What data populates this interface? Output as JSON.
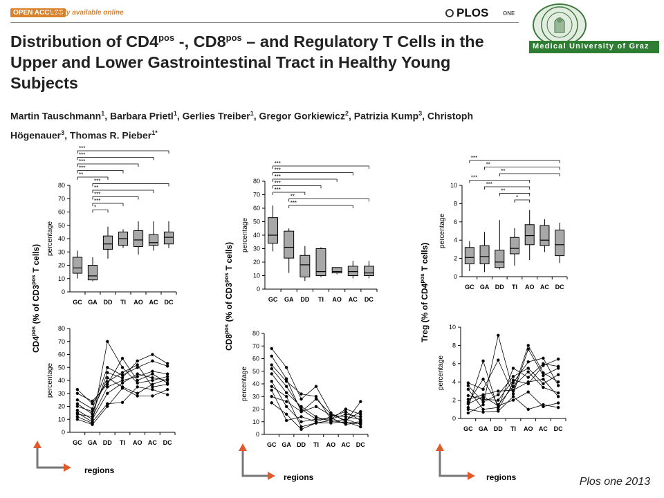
{
  "header": {
    "oa_badge": "OPEN ACCESS",
    "oa_text": "Freely available online",
    "plos_logo": "PLOS",
    "plos_one": "ONE"
  },
  "institution": {
    "name": "Medical University of Graz"
  },
  "title": {
    "part1": "Distribution of CD4",
    "sup1": "pos",
    "part2": " -, CD8",
    "sup2": "pos",
    "part3": " – and Regulatory T Cells in the Upper and Lower Gastrointestinal Tract in Healthy Young Subjects"
  },
  "authors": [
    {
      "name": "Martin Tauschmann",
      "sup": "1"
    },
    {
      "name": "Barbara Prietl",
      "sup": "1"
    },
    {
      "name": "Gerlies Treiber",
      "sup": "1"
    },
    {
      "name": "Gregor Gorkiewicz",
      "sup": "2"
    },
    {
      "name": "Patrizia Kump",
      "sup": "3"
    },
    {
      "name": "Christoph Högenauer",
      "sup": "3"
    },
    {
      "name": "Thomas R. Pieber",
      "sup": "1*"
    }
  ],
  "figure": {
    "regions_label": "regions",
    "percentage_label": "percentage",
    "panel_labels": [
      {
        "pre": "CD4",
        "sup": "pos",
        "post": " (% of CD3",
        "sup2": "pos",
        "post2": " T cells)"
      },
      {
        "pre": "CD8",
        "sup": "pos",
        "post": " (% of CD3",
        "sup2": "pos",
        "post2": " T cells)"
      },
      {
        "pre": "Treg (% of CD4",
        "sup": "pos",
        "post": " T cells)",
        "sup2": "",
        "post2": ""
      }
    ]
  },
  "citation": "Plos one 2013",
  "chart_data": [
    {
      "type": "box",
      "panel": "CD4 boxplot",
      "categories": [
        "GC",
        "GA",
        "DD",
        "TI",
        "AO",
        "AC",
        "DC"
      ],
      "ylim": [
        0,
        80
      ],
      "yticks": [
        0,
        10,
        20,
        30,
        40,
        50,
        60,
        70,
        80
      ],
      "ylabel": "percentage",
      "boxes": [
        {
          "min": 10,
          "q1": 14,
          "median": 18,
          "q3": 26,
          "max": 31
        },
        {
          "min": 8,
          "q1": 9,
          "median": 12,
          "q3": 20,
          "max": 26
        },
        {
          "min": 25,
          "q1": 32,
          "median": 36,
          "q3": 42,
          "max": 49
        },
        {
          "min": 33,
          "q1": 35,
          "median": 40,
          "q3": 45,
          "max": 47
        },
        {
          "min": 28,
          "q1": 34,
          "median": 39,
          "q3": 46,
          "max": 53
        },
        {
          "min": 31,
          "q1": 35,
          "median": 37,
          "q3": 43,
          "max": 53
        },
        {
          "min": 33,
          "q1": 36,
          "median": 41,
          "q3": 45,
          "max": 53
        }
      ],
      "significance": [
        {
          "from": "GC",
          "to": "DC",
          "label": "***"
        },
        {
          "from": "GC",
          "to": "AC",
          "label": "***"
        },
        {
          "from": "GC",
          "to": "AO",
          "label": "***"
        },
        {
          "from": "GC",
          "to": "TI",
          "label": "***"
        },
        {
          "from": "GC",
          "to": "DD",
          "label": "**"
        },
        {
          "from": "GA",
          "to": "DC",
          "label": "***"
        },
        {
          "from": "GA",
          "to": "AC",
          "label": "**"
        },
        {
          "from": "GA",
          "to": "AO",
          "label": "***"
        },
        {
          "from": "GA",
          "to": "TI",
          "label": "***"
        },
        {
          "from": "GA",
          "to": "DD",
          "label": "*"
        }
      ]
    },
    {
      "type": "box",
      "panel": "CD8 boxplot",
      "categories": [
        "GC",
        "GA",
        "DD",
        "TI",
        "AO",
        "AC",
        "DC"
      ],
      "ylim": [
        0,
        80
      ],
      "yticks": [
        0,
        10,
        20,
        30,
        40,
        50,
        60,
        70,
        80
      ],
      "ylabel": "percentage",
      "boxes": [
        {
          "min": 28,
          "q1": 34,
          "median": 40,
          "q3": 53,
          "max": 62
        },
        {
          "min": 12,
          "q1": 23,
          "median": 31,
          "q3": 43,
          "max": 45
        },
        {
          "min": 6,
          "q1": 9,
          "median": 18,
          "q3": 25,
          "max": 32
        },
        {
          "min": 9,
          "q1": 10,
          "median": 13,
          "q3": 30,
          "max": 31
        },
        {
          "min": 11,
          "q1": 12,
          "median": 13,
          "q3": 16,
          "max": 16
        },
        {
          "min": 8,
          "q1": 10,
          "median": 13,
          "q3": 17,
          "max": 21
        },
        {
          "min": 8,
          "q1": 10,
          "median": 12,
          "q3": 17,
          "max": 21
        }
      ],
      "significance": [
        {
          "from": "GC",
          "to": "DC",
          "label": "***"
        },
        {
          "from": "GC",
          "to": "AC",
          "label": "***"
        },
        {
          "from": "GC",
          "to": "AO",
          "label": "***"
        },
        {
          "from": "GC",
          "to": "TI",
          "label": "***"
        },
        {
          "from": "GC",
          "to": "DD",
          "label": "***"
        },
        {
          "from": "GA",
          "to": "DC",
          "label": "**"
        },
        {
          "from": "GA",
          "to": "AC",
          "label": "***"
        }
      ]
    },
    {
      "type": "box",
      "panel": "Treg boxplot",
      "categories": [
        "GC",
        "GA",
        "DD",
        "TI",
        "AO",
        "AC",
        "DC"
      ],
      "ylim": [
        0,
        10
      ],
      "yticks": [
        0,
        2,
        4,
        6,
        8,
        10
      ],
      "ylabel": "percentage",
      "boxes": [
        {
          "min": 0.6,
          "q1": 1.4,
          "median": 2.1,
          "q3": 3.2,
          "max": 3.9
        },
        {
          "min": 0.5,
          "q1": 1.4,
          "median": 2.2,
          "q3": 3.4,
          "max": 4.9
        },
        {
          "min": 0.8,
          "q1": 1.0,
          "median": 1.6,
          "q3": 2.9,
          "max": 6.2
        },
        {
          "min": 1.2,
          "q1": 2.5,
          "median": 3.1,
          "q3": 4.3,
          "max": 5.3
        },
        {
          "min": 1.8,
          "q1": 3.5,
          "median": 4.5,
          "q3": 5.7,
          "max": 7.3
        },
        {
          "min": 2.7,
          "q1": 3.4,
          "median": 4.0,
          "q3": 5.6,
          "max": 6.3
        },
        {
          "min": 1.5,
          "q1": 2.3,
          "median": 3.5,
          "q3": 5.1,
          "max": 5.9
        }
      ],
      "significance": [
        {
          "from": "GC",
          "to": "DC",
          "label": "***"
        },
        {
          "from": "GA",
          "to": "DC",
          "label": "**"
        },
        {
          "from": "DD",
          "to": "DC",
          "label": "**"
        },
        {
          "from": "GC",
          "to": "AO",
          "label": "***"
        },
        {
          "from": "GA",
          "to": "AO",
          "label": "***"
        },
        {
          "from": "DD",
          "to": "AO",
          "label": "**"
        },
        {
          "from": "TI",
          "to": "AO",
          "label": "*"
        }
      ]
    },
    {
      "type": "line",
      "panel": "CD4 individual",
      "categories": [
        "GC",
        "GA",
        "DD",
        "TI",
        "AO",
        "AC",
        "DC"
      ],
      "ylim": [
        0,
        80
      ],
      "yticks": [
        0,
        10,
        20,
        30,
        40,
        50,
        60,
        70,
        80
      ],
      "ylabel": "percentage",
      "series": [
        {
          "values": [
            12,
            7,
            70,
            50,
            38,
            40,
            43
          ]
        },
        {
          "values": [
            17,
            10,
            30,
            38,
            45,
            42,
            40
          ]
        },
        {
          "values": [
            22,
            14,
            46,
            42,
            55,
            60,
            53
          ]
        },
        {
          "values": [
            25,
            18,
            50,
            44,
            50,
            55,
            51
          ]
        },
        {
          "values": [
            30,
            24,
            37,
            57,
            40,
            45,
            38
          ]
        },
        {
          "values": [
            10,
            6,
            20,
            34,
            28,
            28,
            33
          ]
        },
        {
          "values": [
            14,
            12,
            35,
            40,
            43,
            47,
            45
          ]
        },
        {
          "values": [
            20,
            16,
            42,
            35,
            30,
            37,
            41
          ]
        },
        {
          "values": [
            33,
            22,
            39,
            46,
            52,
            35,
            37
          ]
        },
        {
          "values": [
            15,
            8,
            22,
            23,
            35,
            33,
            29
          ]
        }
      ]
    },
    {
      "type": "line",
      "panel": "CD8 individual",
      "categories": [
        "GC",
        "GA",
        "DD",
        "TI",
        "AO",
        "AC",
        "DC"
      ],
      "ylim": [
        0,
        80
      ],
      "yticks": [
        0,
        10,
        20,
        30,
        40,
        50,
        60,
        70,
        80
      ],
      "ylabel": "percentage",
      "series": [
        {
          "values": [
            68,
            53,
            28,
            38,
            17,
            10,
            26
          ]
        },
        {
          "values": [
            62,
            44,
            18,
            22,
            15,
            14,
            12
          ]
        },
        {
          "values": [
            55,
            42,
            32,
            30,
            12,
            20,
            16
          ]
        },
        {
          "values": [
            48,
            33,
            22,
            14,
            10,
            12,
            8
          ]
        },
        {
          "values": [
            42,
            22,
            10,
            12,
            12,
            16,
            14
          ]
        },
        {
          "values": [
            38,
            30,
            6,
            9,
            11,
            9,
            10
          ]
        },
        {
          "values": [
            35,
            11,
            14,
            10,
            14,
            18,
            11
          ]
        },
        {
          "values": [
            30,
            26,
            18,
            28,
            16,
            11,
            18
          ]
        },
        {
          "values": [
            25,
            16,
            4,
            9,
            9,
            10,
            6
          ]
        },
        {
          "values": [
            52,
            38,
            20,
            12,
            13,
            8,
            9
          ]
        }
      ]
    },
    {
      "type": "line",
      "panel": "Treg individual",
      "categories": [
        "GC",
        "GA",
        "DD",
        "TI",
        "AO",
        "AC",
        "DC"
      ],
      "ylim": [
        0,
        10
      ],
      "yticks": [
        0,
        2,
        4,
        6,
        8,
        10
      ],
      "ylabel": "percentage",
      "series": [
        {
          "values": [
            0.6,
            1.5,
            9.1,
            3.0,
            8.0,
            5.0,
            4.0
          ]
        },
        {
          "values": [
            1.2,
            6.3,
            1.0,
            3.9,
            6.2,
            6.6,
            3.6
          ]
        },
        {
          "values": [
            3.9,
            3.2,
            6.4,
            2.7,
            7.6,
            4.7,
            5.5
          ]
        },
        {
          "values": [
            2.5,
            2.1,
            2.0,
            4.2,
            3.8,
            5.8,
            6.5
          ]
        },
        {
          "values": [
            1.8,
            4.3,
            1.5,
            3.5,
            5.1,
            3.4,
            2.8
          ]
        },
        {
          "values": [
            3.2,
            1.0,
            1.2,
            5.5,
            4.5,
            6.0,
            5.7
          ]
        },
        {
          "values": [
            1.0,
            0.7,
            0.8,
            2.4,
            1.0,
            1.5,
            1.2
          ]
        },
        {
          "values": [
            2.1,
            2.6,
            3.0,
            3.1,
            4.0,
            4.3,
            2.4
          ]
        },
        {
          "values": [
            1.6,
            2.4,
            1.4,
            2.0,
            2.9,
            1.3,
            1.7
          ]
        },
        {
          "values": [
            3.6,
            1.8,
            2.6,
            4.6,
            5.5,
            3.8,
            4.8
          ]
        }
      ]
    }
  ]
}
